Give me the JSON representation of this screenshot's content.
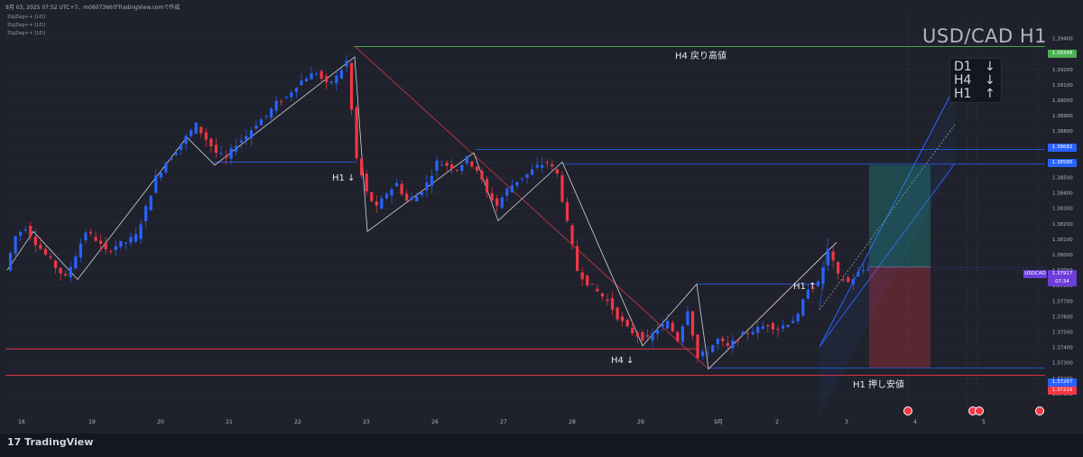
{
  "header": {
    "info": "9月 03, 2025 07:52 UTC+7、m0607366がTradingView.comで作成",
    "indicators": [
      "ZigZag++ [LD]",
      "ZigZag++ [LD]",
      "ZigZag++ [LD]"
    ]
  },
  "symbol_title": "USD/CAD H1",
  "trend_box": {
    "rows": [
      {
        "tf": "D1",
        "arrow": "↓"
      },
      {
        "tf": "H4",
        "arrow": "↓"
      },
      {
        "tf": "H1",
        "arrow": "↑"
      }
    ]
  },
  "annotations": {
    "h4_resistance": "H4 戻り高値",
    "h1_support": "H1 押し安値",
    "h1_down": "H1 ↓",
    "h4_down": "H4 ↓",
    "h1_up": "H1 ↑"
  },
  "price_tags": {
    "pair_label": "USDCAD",
    "current_price": "1.37917",
    "countdown": "07:34",
    "green_level": "1.39348",
    "blue_level_1": "1.38682",
    "blue_level_2": "1.38586",
    "blue_level_3": "1.37267",
    "red_level": "1.37219"
  },
  "footer": {
    "brand": "TradingView"
  },
  "colors": {
    "background": "#1f222c",
    "bull": "#2962ff",
    "bear": "#f23645",
    "zigzag": "#d1d4dc",
    "level_blue": "#2962ff",
    "level_green": "#4caf50",
    "level_red": "#f23645",
    "purple": "#6c3ed8"
  },
  "chart_data": {
    "type": "candlestick",
    "symbol": "USDCAD",
    "timeframe": "H1",
    "y_range": [
      1.37,
      1.3945
    ],
    "y_ticks": [
      "1.39400",
      "1.39200",
      "1.39100",
      "1.39000",
      "1.38900",
      "1.38800",
      "1.38700",
      "1.38600",
      "1.38500",
      "1.38400",
      "1.38300",
      "1.38200",
      "1.38100",
      "1.38000",
      "1.37900",
      "1.37800",
      "1.37700",
      "1.37600",
      "1.37500",
      "1.37400",
      "1.37300",
      "1.37200",
      "1.37100"
    ],
    "x_ticks": [
      "16",
      "19",
      "20",
      "21",
      "22",
      "23",
      "26",
      "27",
      "28",
      "29",
      "9月",
      "2",
      "3",
      "4",
      "5"
    ],
    "price_path": [
      [
        0,
        1.379
      ],
      [
        2,
        1.3812
      ],
      [
        4,
        1.3818
      ],
      [
        6,
        1.3808
      ],
      [
        8,
        1.38
      ],
      [
        10,
        1.3792
      ],
      [
        12,
        1.3785
      ],
      [
        14,
        1.38
      ],
      [
        16,
        1.3815
      ],
      [
        18,
        1.381
      ],
      [
        20,
        1.3802
      ],
      [
        22,
        1.3806
      ],
      [
        24,
        1.3808
      ],
      [
        26,
        1.3812
      ],
      [
        28,
        1.383
      ],
      [
        30,
        1.385
      ],
      [
        32,
        1.386
      ],
      [
        34,
        1.3868
      ],
      [
        36,
        1.3876
      ],
      [
        38,
        1.3884
      ],
      [
        40,
        1.3875
      ],
      [
        42,
        1.3866
      ],
      [
        44,
        1.3862
      ],
      [
        46,
        1.3872
      ],
      [
        48,
        1.3877
      ],
      [
        50,
        1.3885
      ],
      [
        52,
        1.389
      ],
      [
        54,
        1.3898
      ],
      [
        56,
        1.3902
      ],
      [
        58,
        1.391
      ],
      [
        60,
        1.3915
      ],
      [
        62,
        1.3918
      ],
      [
        64,
        1.391
      ],
      [
        66,
        1.3915
      ],
      [
        68,
        1.3925
      ],
      [
        70,
        1.3862
      ],
      [
        72,
        1.384
      ],
      [
        74,
        1.383
      ],
      [
        76,
        1.384
      ],
      [
        78,
        1.3846
      ],
      [
        80,
        1.3835
      ],
      [
        82,
        1.3838
      ],
      [
        84,
        1.3846
      ],
      [
        86,
        1.386
      ],
      [
        88,
        1.3858
      ],
      [
        90,
        1.3856
      ],
      [
        92,
        1.3862
      ],
      [
        94,
        1.3855
      ],
      [
        96,
        1.384
      ],
      [
        98,
        1.3832
      ],
      [
        100,
        1.3842
      ],
      [
        102,
        1.3848
      ],
      [
        104,
        1.3852
      ],
      [
        106,
        1.3857
      ],
      [
        108,
        1.386
      ],
      [
        110,
        1.3852
      ],
      [
        112,
        1.382
      ],
      [
        114,
        1.379
      ],
      [
        116,
        1.3782
      ],
      [
        118,
        1.3776
      ],
      [
        120,
        1.377
      ],
      [
        122,
        1.376
      ],
      [
        124,
        1.3752
      ],
      [
        126,
        1.3748
      ],
      [
        128,
        1.3745
      ],
      [
        130,
        1.3752
      ],
      [
        132,
        1.3756
      ],
      [
        134,
        1.3745
      ],
      [
        136,
        1.3765
      ],
      [
        138,
        1.3733
      ],
      [
        140,
        1.3738
      ],
      [
        142,
        1.3745
      ],
      [
        144,
        1.374
      ],
      [
        146,
        1.3746
      ],
      [
        148,
        1.375
      ],
      [
        150,
        1.3752
      ],
      [
        152,
        1.3755
      ],
      [
        154,
        1.3752
      ],
      [
        156,
        1.3756
      ],
      [
        158,
        1.376
      ],
      [
        160,
        1.3779
      ],
      [
        162,
        1.3781
      ],
      [
        164,
        1.3803
      ],
      [
        166,
        1.3786
      ],
      [
        168,
        1.3782
      ],
      [
        170,
        1.3788
      ],
      [
        172,
        1.3792
      ]
    ]
  }
}
